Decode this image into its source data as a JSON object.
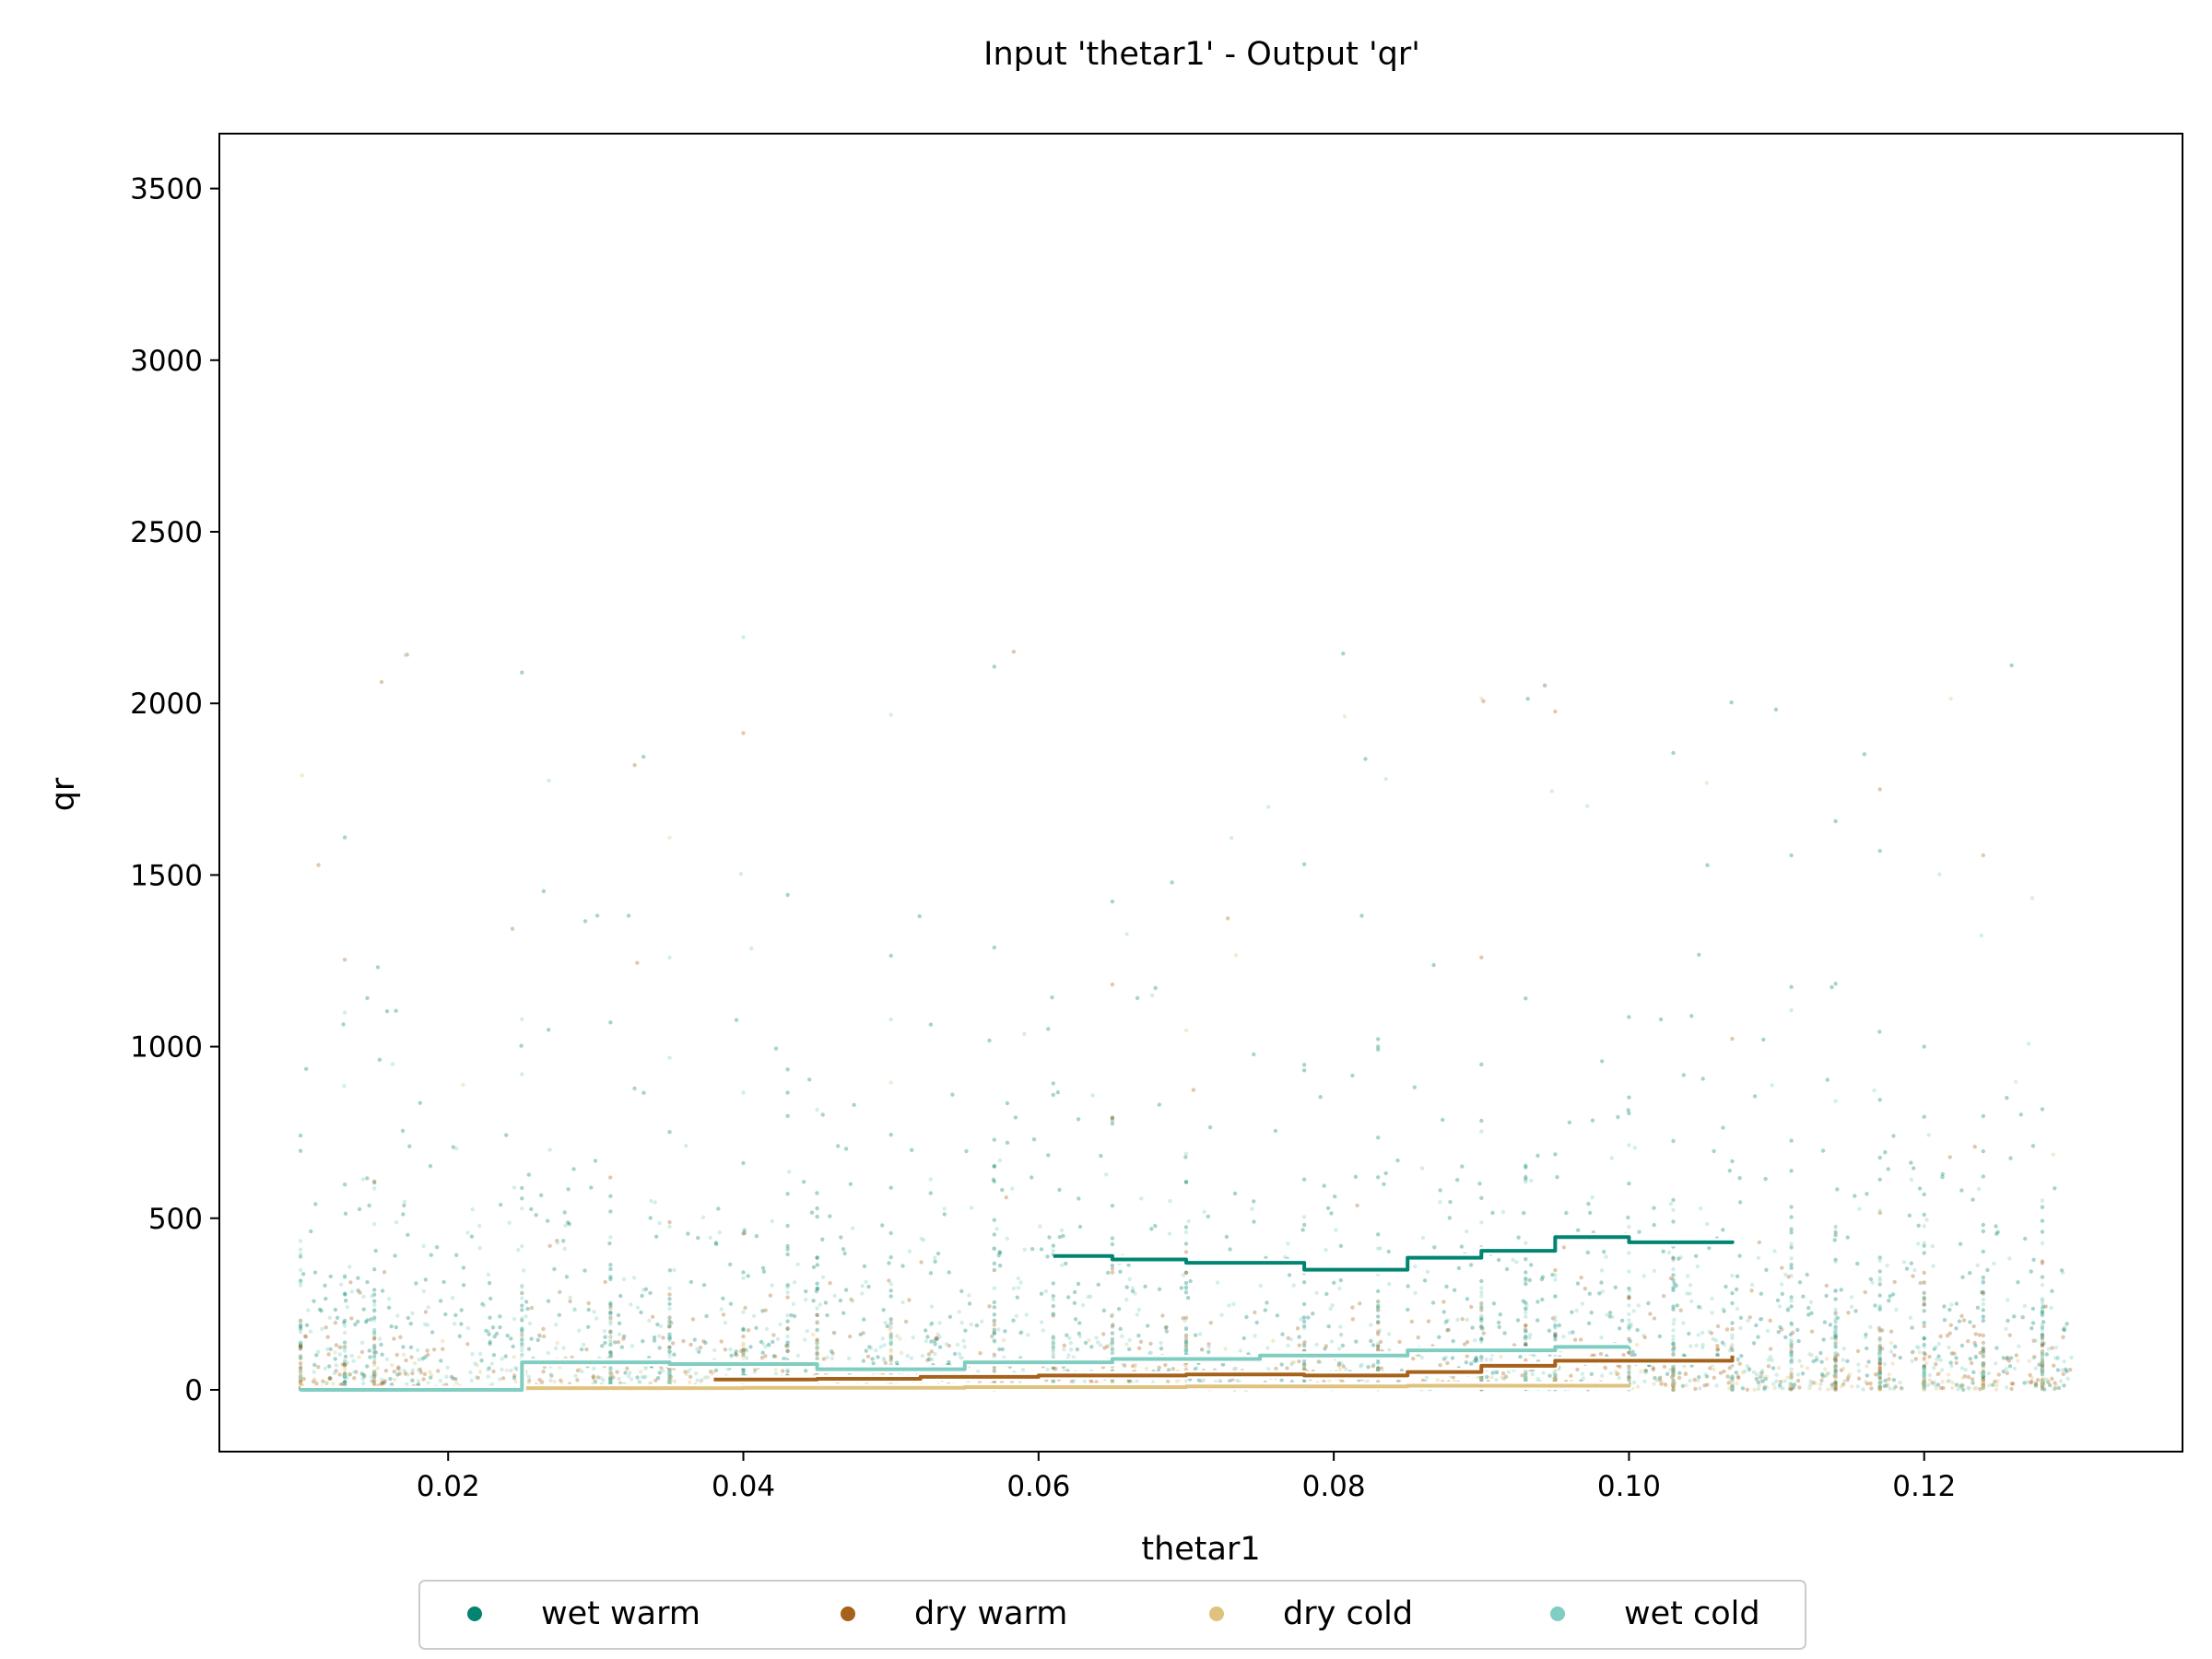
{
  "chart_data": {
    "type": "scatter",
    "title": "Input 'thetar1' - Output 'qr'",
    "xlabel": "thetar1",
    "ylabel": "qr",
    "xlim": [
      0.0045,
      0.1375
    ],
    "ylim": [
      -180,
      3660
    ],
    "xticks": [
      0.02,
      0.04,
      0.06,
      0.08,
      0.1,
      0.12
    ],
    "xtick_labels": [
      "0.02",
      "0.04",
      "0.06",
      "0.08",
      "0.10",
      "0.12"
    ],
    "yticks": [
      0,
      500,
      1000,
      1500,
      2000,
      2500,
      3000,
      3500
    ],
    "ytick_labels": [
      "0",
      "500",
      "1000",
      "1500",
      "2000",
      "2500",
      "3000",
      "3500"
    ],
    "grid": false,
    "legend_position": "bottom-center",
    "series": [
      {
        "name": "wet warm",
        "color": "#018571",
        "x_range": [
          0.061,
          0.107
        ],
        "trend": {
          "x": [
            0.061,
            0.065,
            0.07,
            0.078,
            0.085,
            0.09,
            0.095,
            0.1,
            0.107
          ],
          "y": [
            390,
            380,
            370,
            350,
            385,
            405,
            445,
            430,
            435
          ]
        }
      },
      {
        "name": "dry warm",
        "color": "#a6611a",
        "x_range": [
          0.038,
          0.107
        ],
        "trend": {
          "x": [
            0.038,
            0.045,
            0.052,
            0.06,
            0.07,
            0.078,
            0.085,
            0.09,
            0.095,
            0.1,
            0.107
          ],
          "y": [
            30,
            32,
            38,
            42,
            45,
            42,
            52,
            70,
            85,
            85,
            100
          ]
        }
      },
      {
        "name": "dry cold",
        "color": "#dfc27d",
        "x_range": [
          0.025,
          0.1
        ],
        "trend": {
          "x": [
            0.025,
            0.04,
            0.055,
            0.07,
            0.085,
            0.1
          ],
          "y": [
            5,
            6,
            8,
            10,
            12,
            15
          ]
        }
      },
      {
        "name": "wet cold",
        "color": "#80cdc1",
        "x_range": [
          0.01,
          0.1
        ],
        "trend": {
          "x": [
            0.01,
            0.0249,
            0.025,
            0.035,
            0.045,
            0.055,
            0.065,
            0.075,
            0.085,
            0.095,
            0.1
          ],
          "y": [
            0,
            0,
            80,
            75,
            60,
            80,
            90,
            100,
            115,
            125,
            125
          ]
        }
      }
    ]
  }
}
